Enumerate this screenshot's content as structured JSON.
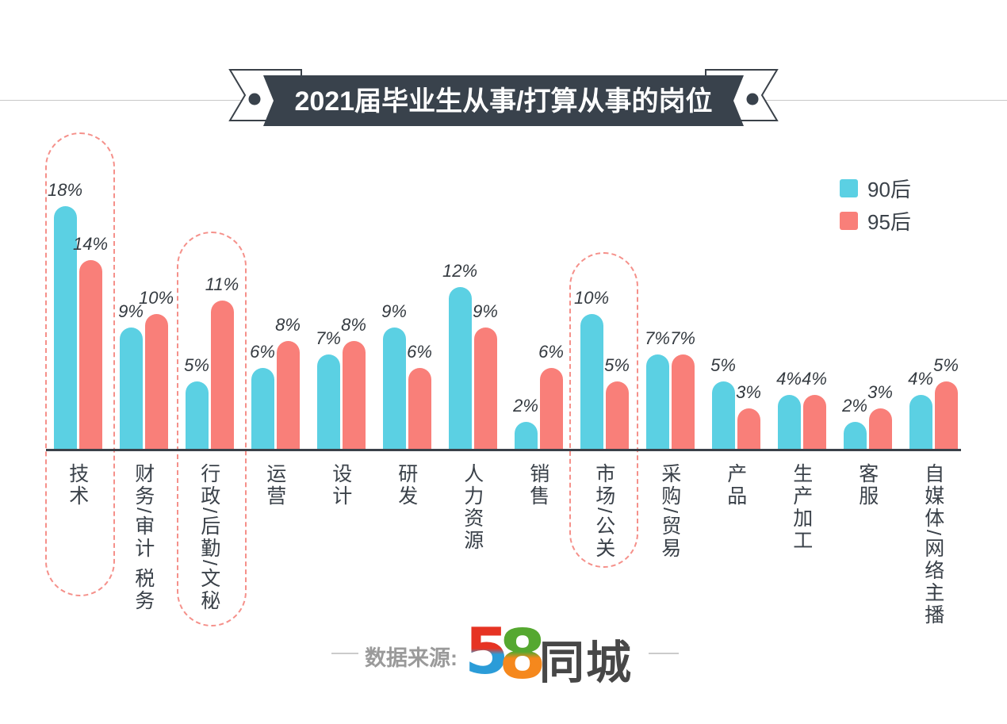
{
  "title": "2021届毕业生从事/打算从事的岗位",
  "legend": [
    {
      "label": "90后",
      "color": "#5bd0e3"
    },
    {
      "label": "95后",
      "color": "#f97f79"
    }
  ],
  "source": {
    "label": "数据来源:",
    "brand_digit_5": "5",
    "brand_digit_8": "8",
    "brand_name": "同城"
  },
  "chart_data": {
    "type": "bar",
    "title": "2021届毕业生从事/打算从事的岗位",
    "categories": [
      "技术",
      "财务/审计 税务",
      "行政/后勤/文秘",
      "运营",
      "设计",
      "研发",
      "人力资源",
      "销售",
      "市场/公关",
      "采购/贸易",
      "产品",
      "生产加工",
      "客服",
      "自媒体/网络主播"
    ],
    "series": [
      {
        "name": "90后",
        "color": "#5bd0e3",
        "values": [
          18,
          9,
          5,
          6,
          7,
          9,
          12,
          2,
          10,
          7,
          5,
          4,
          2,
          4
        ]
      },
      {
        "name": "95后",
        "color": "#f97f79",
        "values": [
          14,
          10,
          11,
          8,
          8,
          6,
          9,
          6,
          5,
          7,
          3,
          4,
          3,
          5
        ]
      }
    ],
    "value_suffix": "%",
    "value_labels_shown": true,
    "highlighted_categories": [
      "技术",
      "行政/后勤/文秘",
      "市场/公关"
    ],
    "highlight_style": {
      "border_color": "#f5908a",
      "shape": "dashed-pill"
    },
    "axis_color": "#3a4149",
    "title_banner_color": "#39424c",
    "ylim": [
      0,
      20
    ],
    "grid": false,
    "legend_position": "top-right"
  }
}
